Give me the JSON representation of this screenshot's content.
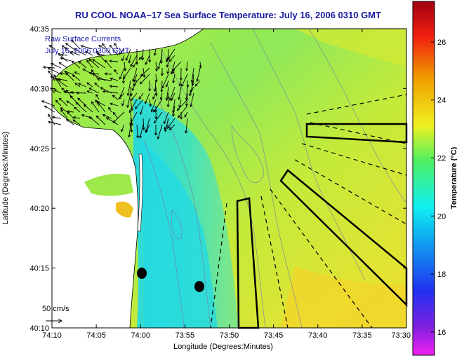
{
  "title": "RU COOL  NOAA–17  Sea Surface Temperature:  July 16, 2006 0310 GMT",
  "legend": {
    "line1": "Raw Surface Currents",
    "line2": "July 16, 2006 0300 GMT"
  },
  "scale_label": "50 cm/s",
  "axes": {
    "xlabel": "Longitude (Degrees:Minutes)",
    "ylabel": "Latitude (Degrees:Minutes)",
    "x_ticks": [
      "74:10",
      "74:05",
      "74:00",
      "73:55",
      "73:50",
      "73:45",
      "73:40",
      "73:35",
      "73:30"
    ],
    "y_ticks": [
      "40:10",
      "40:15",
      "40:20",
      "40:25",
      "40:30",
      "40:35"
    ]
  },
  "colorbar": {
    "label": "Temperature (°C)",
    "ticks": [
      "16",
      "18",
      "20",
      "22",
      "24",
      "26"
    ],
    "range": [
      15.2,
      27.4
    ]
  },
  "colors": {
    "land": "#ffffff",
    "water_cool": "#33dde0",
    "water_warm": "#e6ec2e",
    "title": "#1a1aa0",
    "track": "#000000"
  }
}
